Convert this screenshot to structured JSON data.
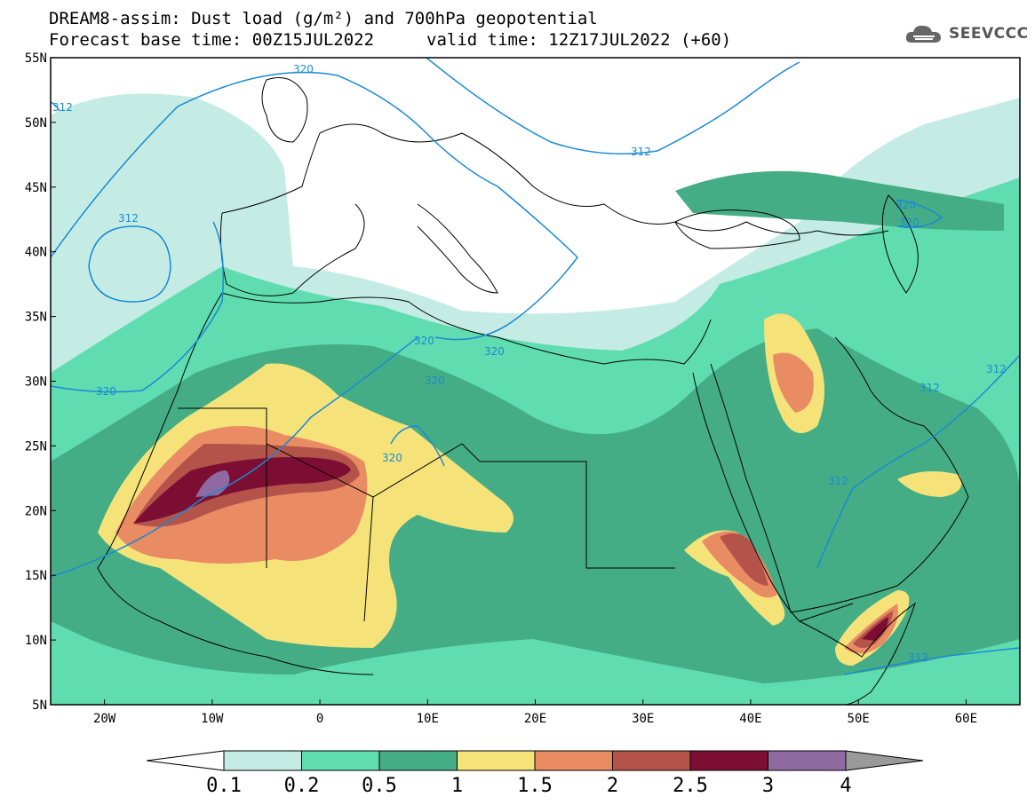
{
  "title": {
    "line1": "DREAM8-assim: Dust load (g/m²) and 700hPa geopotential",
    "base_time": "Forecast base time: 00Z15JUL2022",
    "valid_time": "valid time: 12Z17JUL2022 (+60)"
  },
  "logo": {
    "text": "SEEVCCC",
    "icon": "cloud-icon"
  },
  "map": {
    "lon_range": [
      -25,
      65
    ],
    "lat_range": [
      5,
      55
    ],
    "lat_ticks": [
      "5N",
      "10N",
      "15N",
      "20N",
      "25N",
      "30N",
      "35N",
      "40N",
      "45N",
      "50N",
      "55N"
    ],
    "lon_ticks": [
      "20W",
      "10W",
      "0",
      "10E",
      "20E",
      "30E",
      "40E",
      "50E",
      "60E"
    ],
    "contour_labels": [
      "320",
      "312",
      "312",
      "312",
      "320",
      "320",
      "320",
      "320",
      "320",
      "312",
      "312",
      "312",
      "320",
      "320",
      "312"
    ],
    "colors": {
      "c0": "#c4ece4",
      "c1": "#5fdcb0",
      "c2": "#45ad85",
      "c3": "#f5e37a",
      "c4": "#e98b63",
      "c5": "#b4534a",
      "c6": "#7d0e33",
      "c7": "#8e6aa1",
      "contour": "#1a8ad4"
    }
  },
  "colorbar": {
    "labels": [
      "0.1",
      "0.2",
      "0.5",
      "1",
      "1.5",
      "2",
      "2.5",
      "3",
      "4"
    ],
    "colors": [
      "#c4ece4",
      "#5fdcb0",
      "#45ad85",
      "#f5e37a",
      "#e98b63",
      "#b4534a",
      "#7d0e33",
      "#8e6aa1"
    ],
    "over_color": "#9a9a9a",
    "under_color": "#ffffff"
  }
}
